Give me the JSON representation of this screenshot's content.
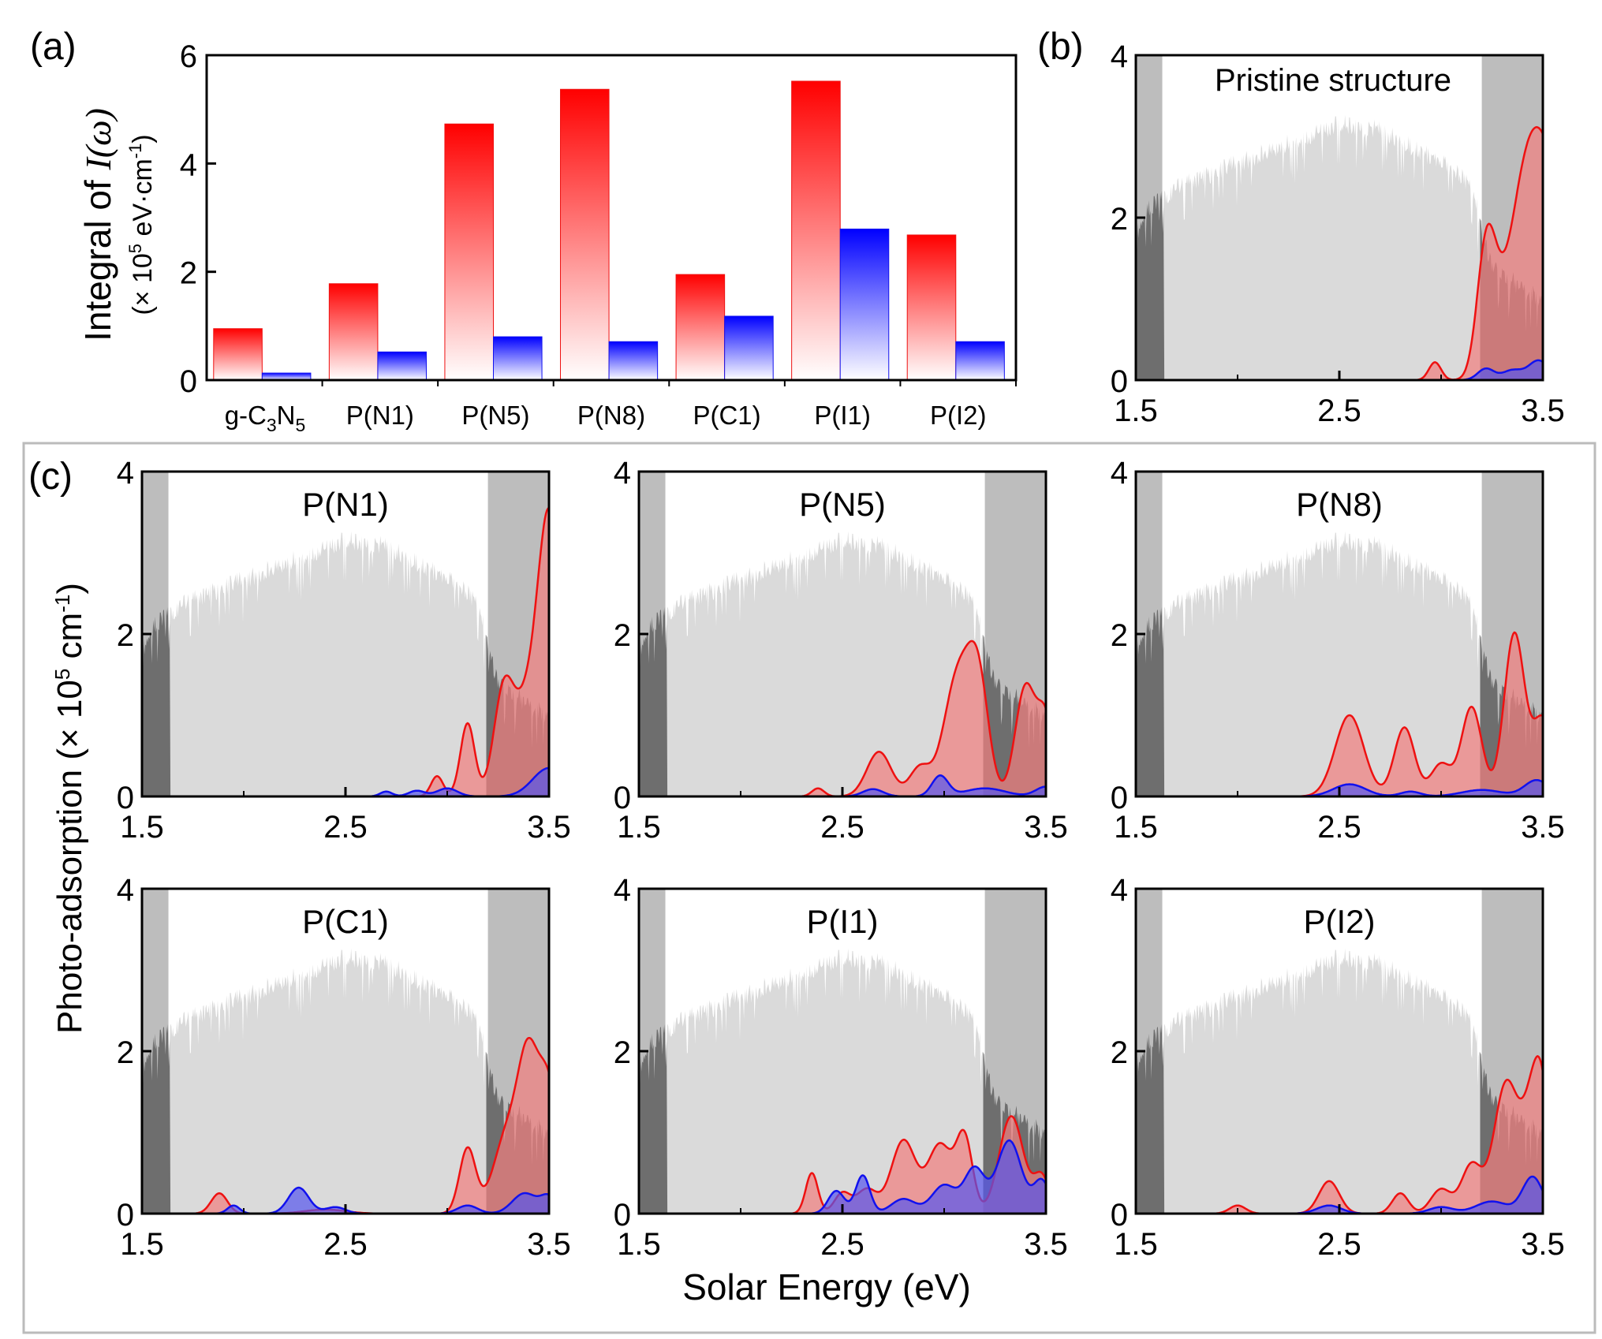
{
  "colors": {
    "red_fill": "#f08080",
    "red_line": "#ee1111",
    "blue_line": "#1111ee",
    "blue_fill": "#5555ee",
    "spectrum_light": "#dadada",
    "spectrum_dark": "#6e6e6e",
    "shade_left": "#bdbdbd",
    "shade_right": "#bdbdbd",
    "panel_c_border": "#bbbbbb"
  },
  "panel_a": {
    "label": "(a)",
    "ylabel_main": "Integral of ",
    "ylabel_math": "I(ω)",
    "ylabel_unit_pre": "(× 10",
    "ylabel_unit_exp1": "5",
    "ylabel_unit_mid": " eV·cm",
    "ylabel_unit_exp2": "-1",
    "ylabel_unit_post": ")",
    "first_category": {
      "base": "g-C",
      "sub1": "3",
      "mid": "N",
      "sub2": "5"
    }
  },
  "panel_b": {
    "label": "(b)",
    "title": "Pristine structure"
  },
  "panel_c": {
    "label": "(c)",
    "ylabel_pre": "Photo-adsorption (× 10",
    "ylabel_exp1": "5",
    "ylabel_mid": " cm",
    "ylabel_exp2": "-1",
    "ylabel_post": ")",
    "xlabel": "Solar Energy (eV)"
  },
  "chart_data": [
    {
      "id": "a",
      "type": "bar",
      "categories": [
        "g-C3N5",
        "P(N1)",
        "P(N5)",
        "P(N8)",
        "P(C1)",
        "P(I1)",
        "P(I2)"
      ],
      "series": [
        {
          "name": "red",
          "values": [
            0.95,
            1.78,
            4.73,
            5.37,
            1.95,
            5.52,
            2.68
          ]
        },
        {
          "name": "blue",
          "values": [
            0.13,
            0.52,
            0.8,
            0.71,
            1.18,
            2.79,
            0.71
          ]
        }
      ],
      "ylim": [
        0,
        6
      ],
      "yticks": [
        0,
        2,
        4,
        6
      ]
    },
    {
      "id": "b",
      "type": "area",
      "title": "Pristine structure",
      "xlim": [
        1.5,
        3.5
      ],
      "ylim": [
        0,
        4
      ],
      "xticks": [
        "1.5",
        "2.5",
        "3.5"
      ],
      "yticks": [
        "0",
        "2",
        "4"
      ],
      "red_peaks": [
        [
          2.97,
          0.22,
          0.03
        ],
        [
          3.22,
          1.45,
          0.045
        ],
        [
          3.27,
          0.45,
          0.05
        ],
        [
          3.38,
          1.0,
          0.07
        ],
        [
          3.5,
          2.8,
          0.1
        ]
      ],
      "blue_peaks": [
        [
          3.22,
          0.14,
          0.04
        ],
        [
          3.35,
          0.12,
          0.05
        ],
        [
          3.48,
          0.24,
          0.05
        ]
      ]
    },
    {
      "id": "c1",
      "type": "area",
      "title": "P(N1)",
      "xlim": [
        1.5,
        3.5
      ],
      "ylim": [
        0,
        4
      ],
      "xticks": [
        "1.5",
        "2.5",
        "3.5"
      ],
      "yticks": [
        "0",
        "2",
        "4"
      ],
      "red_peaks": [
        [
          2.95,
          0.25,
          0.03
        ],
        [
          3.1,
          0.9,
          0.035
        ],
        [
          3.28,
          1.35,
          0.05
        ],
        [
          3.38,
          0.8,
          0.05
        ],
        [
          3.5,
          3.5,
          0.06
        ]
      ],
      "blue_peaks": [
        [
          2.7,
          0.06,
          0.03
        ],
        [
          2.85,
          0.07,
          0.04
        ],
        [
          3.0,
          0.1,
          0.05
        ],
        [
          3.5,
          0.35,
          0.08
        ]
      ]
    },
    {
      "id": "c2",
      "type": "area",
      "title": "P(N5)",
      "xlim": [
        1.5,
        3.5
      ],
      "ylim": [
        0,
        4
      ],
      "xticks": [
        "1.5",
        "2.5",
        "3.5"
      ],
      "yticks": [
        "0",
        "2",
        "4"
      ],
      "red_peaks": [
        [
          2.38,
          0.1,
          0.03
        ],
        [
          2.68,
          0.55,
          0.06
        ],
        [
          2.88,
          0.35,
          0.05
        ],
        [
          3.07,
          1.5,
          0.07
        ],
        [
          3.17,
          1.2,
          0.05
        ],
        [
          3.4,
          1.35,
          0.05
        ],
        [
          3.5,
          0.9,
          0.04
        ]
      ],
      "blue_peaks": [
        [
          2.65,
          0.09,
          0.05
        ],
        [
          2.98,
          0.25,
          0.04
        ],
        [
          3.2,
          0.1,
          0.1
        ],
        [
          3.5,
          0.12,
          0.05
        ]
      ]
    },
    {
      "id": "c3",
      "type": "area",
      "title": "P(N8)",
      "xlim": [
        1.5,
        3.5
      ],
      "ylim": [
        0,
        4
      ],
      "xticks": [
        "1.5",
        "2.5",
        "3.5"
      ],
      "yticks": [
        "0",
        "2",
        "4"
      ],
      "red_peaks": [
        [
          2.55,
          1.0,
          0.07
        ],
        [
          2.82,
          0.85,
          0.05
        ],
        [
          3.0,
          0.4,
          0.05
        ],
        [
          3.15,
          1.1,
          0.05
        ],
        [
          3.36,
          2.0,
          0.05
        ],
        [
          3.5,
          0.95,
          0.05
        ]
      ],
      "blue_peaks": [
        [
          2.55,
          0.15,
          0.08
        ],
        [
          2.85,
          0.06,
          0.05
        ],
        [
          3.2,
          0.08,
          0.1
        ],
        [
          3.47,
          0.2,
          0.06
        ]
      ]
    },
    {
      "id": "c4",
      "type": "area",
      "title": "P(C1)",
      "xlim": [
        1.5,
        3.5
      ],
      "ylim": [
        0,
        4
      ],
      "xticks": [
        "1.5",
        "2.5",
        "3.5"
      ],
      "yticks": [
        "0",
        "2",
        "4"
      ],
      "red_peaks": [
        [
          1.88,
          0.25,
          0.04
        ],
        [
          2.4,
          0.05,
          0.1
        ],
        [
          3.1,
          0.8,
          0.04
        ],
        [
          3.3,
          1.0,
          0.07
        ],
        [
          3.4,
          1.6,
          0.05
        ],
        [
          3.5,
          1.5,
          0.05
        ]
      ],
      "blue_peaks": [
        [
          1.95,
          0.1,
          0.03
        ],
        [
          2.27,
          0.32,
          0.05
        ],
        [
          2.45,
          0.08,
          0.05
        ],
        [
          3.1,
          0.1,
          0.05
        ],
        [
          3.38,
          0.25,
          0.06
        ],
        [
          3.5,
          0.2,
          0.04
        ]
      ]
    },
    {
      "id": "c5",
      "type": "area",
      "title": "P(I1)",
      "xlim": [
        1.5,
        3.5
      ],
      "ylim": [
        0,
        4
      ],
      "xticks": [
        "1.5",
        "2.5",
        "3.5"
      ],
      "yticks": [
        "0",
        "2",
        "4"
      ],
      "red_peaks": [
        [
          2.35,
          0.5,
          0.03
        ],
        [
          2.5,
          0.25,
          0.04
        ],
        [
          2.62,
          0.3,
          0.05
        ],
        [
          2.8,
          0.9,
          0.06
        ],
        [
          2.98,
          0.85,
          0.06
        ],
        [
          3.1,
          0.9,
          0.04
        ],
        [
          3.33,
          1.2,
          0.06
        ],
        [
          3.48,
          0.45,
          0.04
        ]
      ],
      "blue_peaks": [
        [
          2.47,
          0.28,
          0.04
        ],
        [
          2.6,
          0.47,
          0.035
        ],
        [
          2.8,
          0.18,
          0.06
        ],
        [
          3.0,
          0.35,
          0.06
        ],
        [
          3.15,
          0.55,
          0.05
        ],
        [
          3.32,
          0.9,
          0.06
        ],
        [
          3.48,
          0.4,
          0.04
        ]
      ]
    },
    {
      "id": "c6",
      "type": "area",
      "title": "P(I2)",
      "xlim": [
        1.5,
        3.5
      ],
      "ylim": [
        0,
        4
      ],
      "xticks": [
        "1.5",
        "2.5",
        "3.5"
      ],
      "yticks": [
        "0",
        "2",
        "4"
      ],
      "red_peaks": [
        [
          2.0,
          0.1,
          0.04
        ],
        [
          2.45,
          0.4,
          0.05
        ],
        [
          2.8,
          0.25,
          0.04
        ],
        [
          3.0,
          0.3,
          0.05
        ],
        [
          3.15,
          0.6,
          0.05
        ],
        [
          3.32,
          1.6,
          0.06
        ],
        [
          3.45,
          1.2,
          0.05
        ],
        [
          3.5,
          1.0,
          0.04
        ]
      ],
      "blue_peaks": [
        [
          2.45,
          0.1,
          0.06
        ],
        [
          3.0,
          0.08,
          0.06
        ],
        [
          3.25,
          0.15,
          0.08
        ],
        [
          3.45,
          0.45,
          0.05
        ]
      ]
    }
  ]
}
